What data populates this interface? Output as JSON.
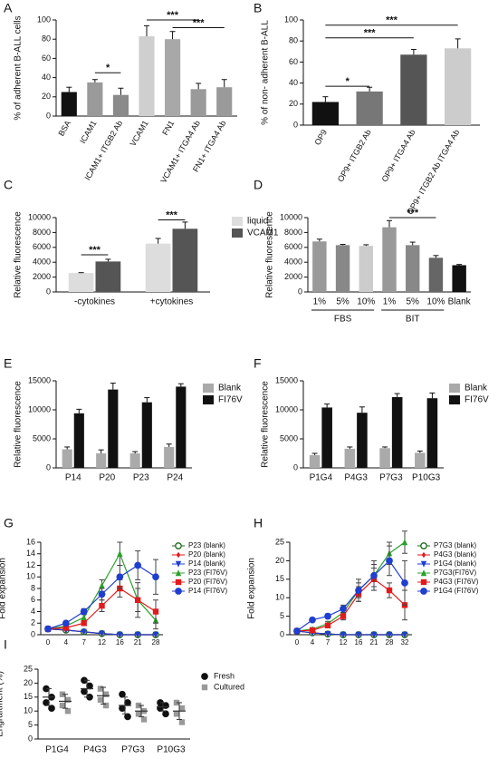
{
  "chart_data": [
    {
      "label": "A",
      "type": "bar",
      "ylabel": "% of adherent B-ALL cells",
      "categories": [
        "BSA",
        "ICAM1",
        "ICAM1+ ITGB2 Ab",
        "VCAM1",
        "FN1",
        "VCAM1+ ITGA4 Ab",
        "FN1+ ITGA4 Ab"
      ],
      "values": [
        25,
        35,
        22,
        83,
        80,
        28,
        30
      ],
      "errors": [
        5,
        3,
        7,
        11,
        8,
        6,
        8
      ],
      "colors": [
        "#111111",
        "#9a9a9a",
        "#8a8a8a",
        "#cfcfcf",
        "#a8a8a8",
        "#9a9a9a",
        "#9a9a9a"
      ],
      "ylim": [
        0,
        100
      ],
      "yticks": [
        0,
        20,
        40,
        60,
        80,
        100
      ],
      "annotations": [
        {
          "text": "*",
          "from": 1,
          "to": 2,
          "y": 45
        },
        {
          "text": "***",
          "from": 3,
          "to": 5,
          "y": 100
        },
        {
          "text": "***",
          "from": 4,
          "to": 6,
          "y": 92
        }
      ]
    },
    {
      "label": "B",
      "type": "bar",
      "ylabel": "% of non- adherent B-ALL",
      "categories": [
        "OP9",
        "OP9+ ITGB2 Ab",
        "OP9+ ITGA4 Ab",
        "OP9+ ITGB2 Ab ITGA4 Ab"
      ],
      "values": [
        22,
        32,
        67,
        73
      ],
      "errors": [
        5,
        4,
        5,
        9
      ],
      "colors": [
        "#111111",
        "#777777",
        "#555555",
        "#cccccc"
      ],
      "ylim": [
        0,
        100
      ],
      "yticks": [
        0,
        20,
        40,
        60,
        80,
        100
      ],
      "annotations": [
        {
          "text": "*",
          "from": 0,
          "to": 1,
          "y": 37
        },
        {
          "text": "***",
          "from": 0,
          "to": 2,
          "y": 83
        },
        {
          "text": "***",
          "from": 0,
          "to": 3,
          "y": 95
        }
      ]
    },
    {
      "label": "C",
      "type": "bar",
      "ylabel": "Relative fluorescence",
      "categories": [
        "-cytokines",
        "+cytokines"
      ],
      "series": [
        {
          "name": "liquid",
          "color": "#dddddd",
          "values": [
            2550,
            6500
          ],
          "errors": [
            50,
            700
          ]
        },
        {
          "name": "VCAM1",
          "color": "#555555",
          "values": [
            4100,
            8500
          ],
          "errors": [
            300,
            900
          ]
        }
      ],
      "ylim": [
        0,
        10000
      ],
      "yticks": [
        0,
        2000,
        4000,
        6000,
        8000,
        10000
      ],
      "annotations": [
        {
          "text": "***",
          "from": 0,
          "to": 1,
          "y": 5000
        },
        {
          "text": "***",
          "from": 2,
          "to": 3,
          "y": 9700
        }
      ]
    },
    {
      "label": "D",
      "type": "bar",
      "ylabel": "Relative fluorescence",
      "categories": [
        "1%",
        "5%",
        "10%",
        "1%",
        "5%",
        "10%",
        "Blank"
      ],
      "values": [
        6800,
        6300,
        6200,
        8700,
        6300,
        4600,
        3600
      ],
      "errors": [
        300,
        100,
        150,
        900,
        400,
        300,
        100
      ],
      "colors": [
        "#999999",
        "#888888",
        "#cccccc",
        "#999999",
        "#888888",
        "#666666",
        "#111111"
      ],
      "groups": [
        {
          "text": "FBS",
          "from": 0,
          "to": 2
        },
        {
          "text": "BIT",
          "from": 3,
          "to": 5
        }
      ],
      "ylim": [
        0,
        10000
      ],
      "yticks": [
        0,
        2000,
        4000,
        6000,
        8000,
        10000
      ],
      "annotations": [
        {
          "text": "***",
          "from": 3,
          "to": 5,
          "y": 10000
        }
      ]
    },
    {
      "label": "E",
      "type": "bar",
      "ylabel": "Relative fluorescence",
      "categories": [
        "P14",
        "P20",
        "P23",
        "P24"
      ],
      "series": [
        {
          "name": "Blank",
          "color": "#aaaaaa",
          "values": [
            3200,
            2500,
            2500,
            3600
          ],
          "errors": [
            400,
            600,
            300,
            500
          ]
        },
        {
          "name": "FI76V",
          "color": "#111111",
          "values": [
            9400,
            13500,
            11300,
            14000
          ],
          "errors": [
            700,
            1100,
            800,
            500
          ]
        }
      ],
      "ylim": [
        0,
        15000
      ],
      "yticks": [
        0,
        5000,
        10000,
        15000
      ]
    },
    {
      "label": "F",
      "type": "bar",
      "ylabel": "Relative fluorescence",
      "categories": [
        "P1G4",
        "P4G3",
        "P7G3",
        "P10G3"
      ],
      "series": [
        {
          "name": "Blank",
          "color": "#aaaaaa",
          "values": [
            2200,
            3300,
            3400,
            2600
          ],
          "errors": [
            300,
            300,
            200,
            300
          ]
        },
        {
          "name": "FI76V",
          "color": "#111111",
          "values": [
            10400,
            9500,
            12200,
            12000
          ],
          "errors": [
            600,
            1000,
            600,
            900
          ]
        }
      ],
      "ylim": [
        0,
        15000
      ],
      "yticks": [
        0,
        5000,
        10000,
        15000
      ]
    },
    {
      "label": "G",
      "type": "line",
      "ylabel": "Fold expansion",
      "categories": [
        0,
        4,
        7,
        12,
        16,
        21,
        28
      ],
      "series": [
        {
          "name": "P23 (blank)",
          "color": "#1a6a1a",
          "marker": "open-circle",
          "values": [
            1,
            0.8,
            0.5,
            0.2,
            0,
            0,
            0
          ]
        },
        {
          "name": "P20 (blank)",
          "color": "#e31a1c",
          "marker": "diamond",
          "values": [
            1,
            0.8,
            0.5,
            0.2,
            0,
            0,
            0
          ]
        },
        {
          "name": "P14 (blank)",
          "color": "#1f3fd0",
          "marker": "triangle-down",
          "values": [
            1,
            0.8,
            0.5,
            0.2,
            0,
            0,
            0
          ]
        },
        {
          "name": "P23 (FI76V)",
          "color": "#2ca02c",
          "marker": "triangle",
          "values": [
            1,
            1.5,
            3,
            8.5,
            14,
            6,
            2.5
          ],
          "errors": [
            0.2,
            0.3,
            0.5,
            1,
            2,
            2,
            1.5
          ]
        },
        {
          "name": "P20 (FI76V)",
          "color": "#e31a1c",
          "marker": "square",
          "values": [
            1,
            1.2,
            2,
            5,
            8,
            6,
            4
          ],
          "errors": [
            0.2,
            0.3,
            0.4,
            1,
            1.5,
            3,
            2
          ]
        },
        {
          "name": "P14 (FI76V)",
          "color": "#1f3fd0",
          "marker": "circle",
          "values": [
            1,
            2,
            4,
            7,
            10,
            12,
            10
          ],
          "errors": [
            0.2,
            0.3,
            0.5,
            1,
            2,
            2.5,
            3
          ]
        }
      ],
      "ylim": [
        0,
        16
      ],
      "yticks": [
        0,
        2,
        4,
        6,
        8,
        10,
        12,
        14,
        16
      ]
    },
    {
      "label": "H",
      "type": "line",
      "ylabel": "Fold expansion",
      "categories": [
        0,
        4,
        7,
        12,
        16,
        21,
        28,
        32
      ],
      "series": [
        {
          "name": "P7G3 (blank)",
          "color": "#1a6a1a",
          "marker": "open-circle",
          "values": [
            1,
            0.5,
            0.2,
            0,
            0,
            0,
            0,
            0
          ]
        },
        {
          "name": "P4G3 (blank)",
          "color": "#e31a1c",
          "marker": "diamond",
          "values": [
            1,
            0.5,
            0.2,
            0,
            0,
            0,
            0,
            0
          ]
        },
        {
          "name": "P1G4 (blank)",
          "color": "#1f3fd0",
          "marker": "triangle-down",
          "values": [
            1,
            0.5,
            0.2,
            0,
            0,
            0,
            0,
            0
          ]
        },
        {
          "name": "P7G3(FI76V)",
          "color": "#2ca02c",
          "marker": "triangle",
          "values": [
            1,
            1.5,
            3,
            6,
            12,
            16,
            22,
            25
          ],
          "errors": [
            0.2,
            0.4,
            0.6,
            1,
            3,
            4,
            3,
            3
          ]
        },
        {
          "name": "P4G3 (FI76V)",
          "color": "#e31a1c",
          "marker": "square",
          "values": [
            1,
            1.2,
            2.5,
            5,
            11,
            15,
            12,
            8
          ],
          "errors": [
            0.2,
            0.3,
            0.6,
            1,
            2,
            3,
            2,
            4
          ]
        },
        {
          "name": "P1G4  (FI76V)",
          "color": "#1f3fd0",
          "marker": "circle",
          "values": [
            1,
            4,
            5,
            7,
            12,
            16,
            20,
            14
          ],
          "errors": [
            0.2,
            0.5,
            0.6,
            1,
            2,
            3,
            4,
            6
          ]
        }
      ],
      "ylim": [
        0,
        25
      ],
      "yticks": [
        0,
        5,
        10,
        15,
        20,
        25
      ]
    },
    {
      "label": "I",
      "type": "strip",
      "ylabel": "Engraftment (%)",
      "categories": [
        "P1G4",
        "P4G3",
        "P7G3",
        "P10G3"
      ],
      "series": [
        {
          "name": "Fresh",
          "color": "#111111",
          "marker": "circle",
          "points": [
            [
              18,
              15,
              13,
              11
            ],
            [
              21,
              19,
              17,
              15
            ],
            [
              16,
              13,
              11,
              8
            ],
            [
              13,
              12,
              11,
              9
            ]
          ],
          "means": [
            15,
            18,
            12,
            11.5
          ],
          "sds": [
            3,
            3,
            3,
            1.5
          ]
        },
        {
          "name": "Cultured",
          "color": "#999999",
          "marker": "square",
          "points": [
            [
              16,
              14,
              12,
              10
            ],
            [
              18,
              16,
              14,
              12
            ],
            [
              12,
              10,
              9,
              7
            ],
            [
              13,
              11,
              9,
              6
            ]
          ],
          "means": [
            13.5,
            15.5,
            10,
            10
          ],
          "sds": [
            2.5,
            3,
            2,
            3
          ]
        }
      ],
      "ylim": [
        0,
        25
      ],
      "yticks": [
        0,
        5,
        10,
        15,
        20,
        25
      ]
    }
  ]
}
